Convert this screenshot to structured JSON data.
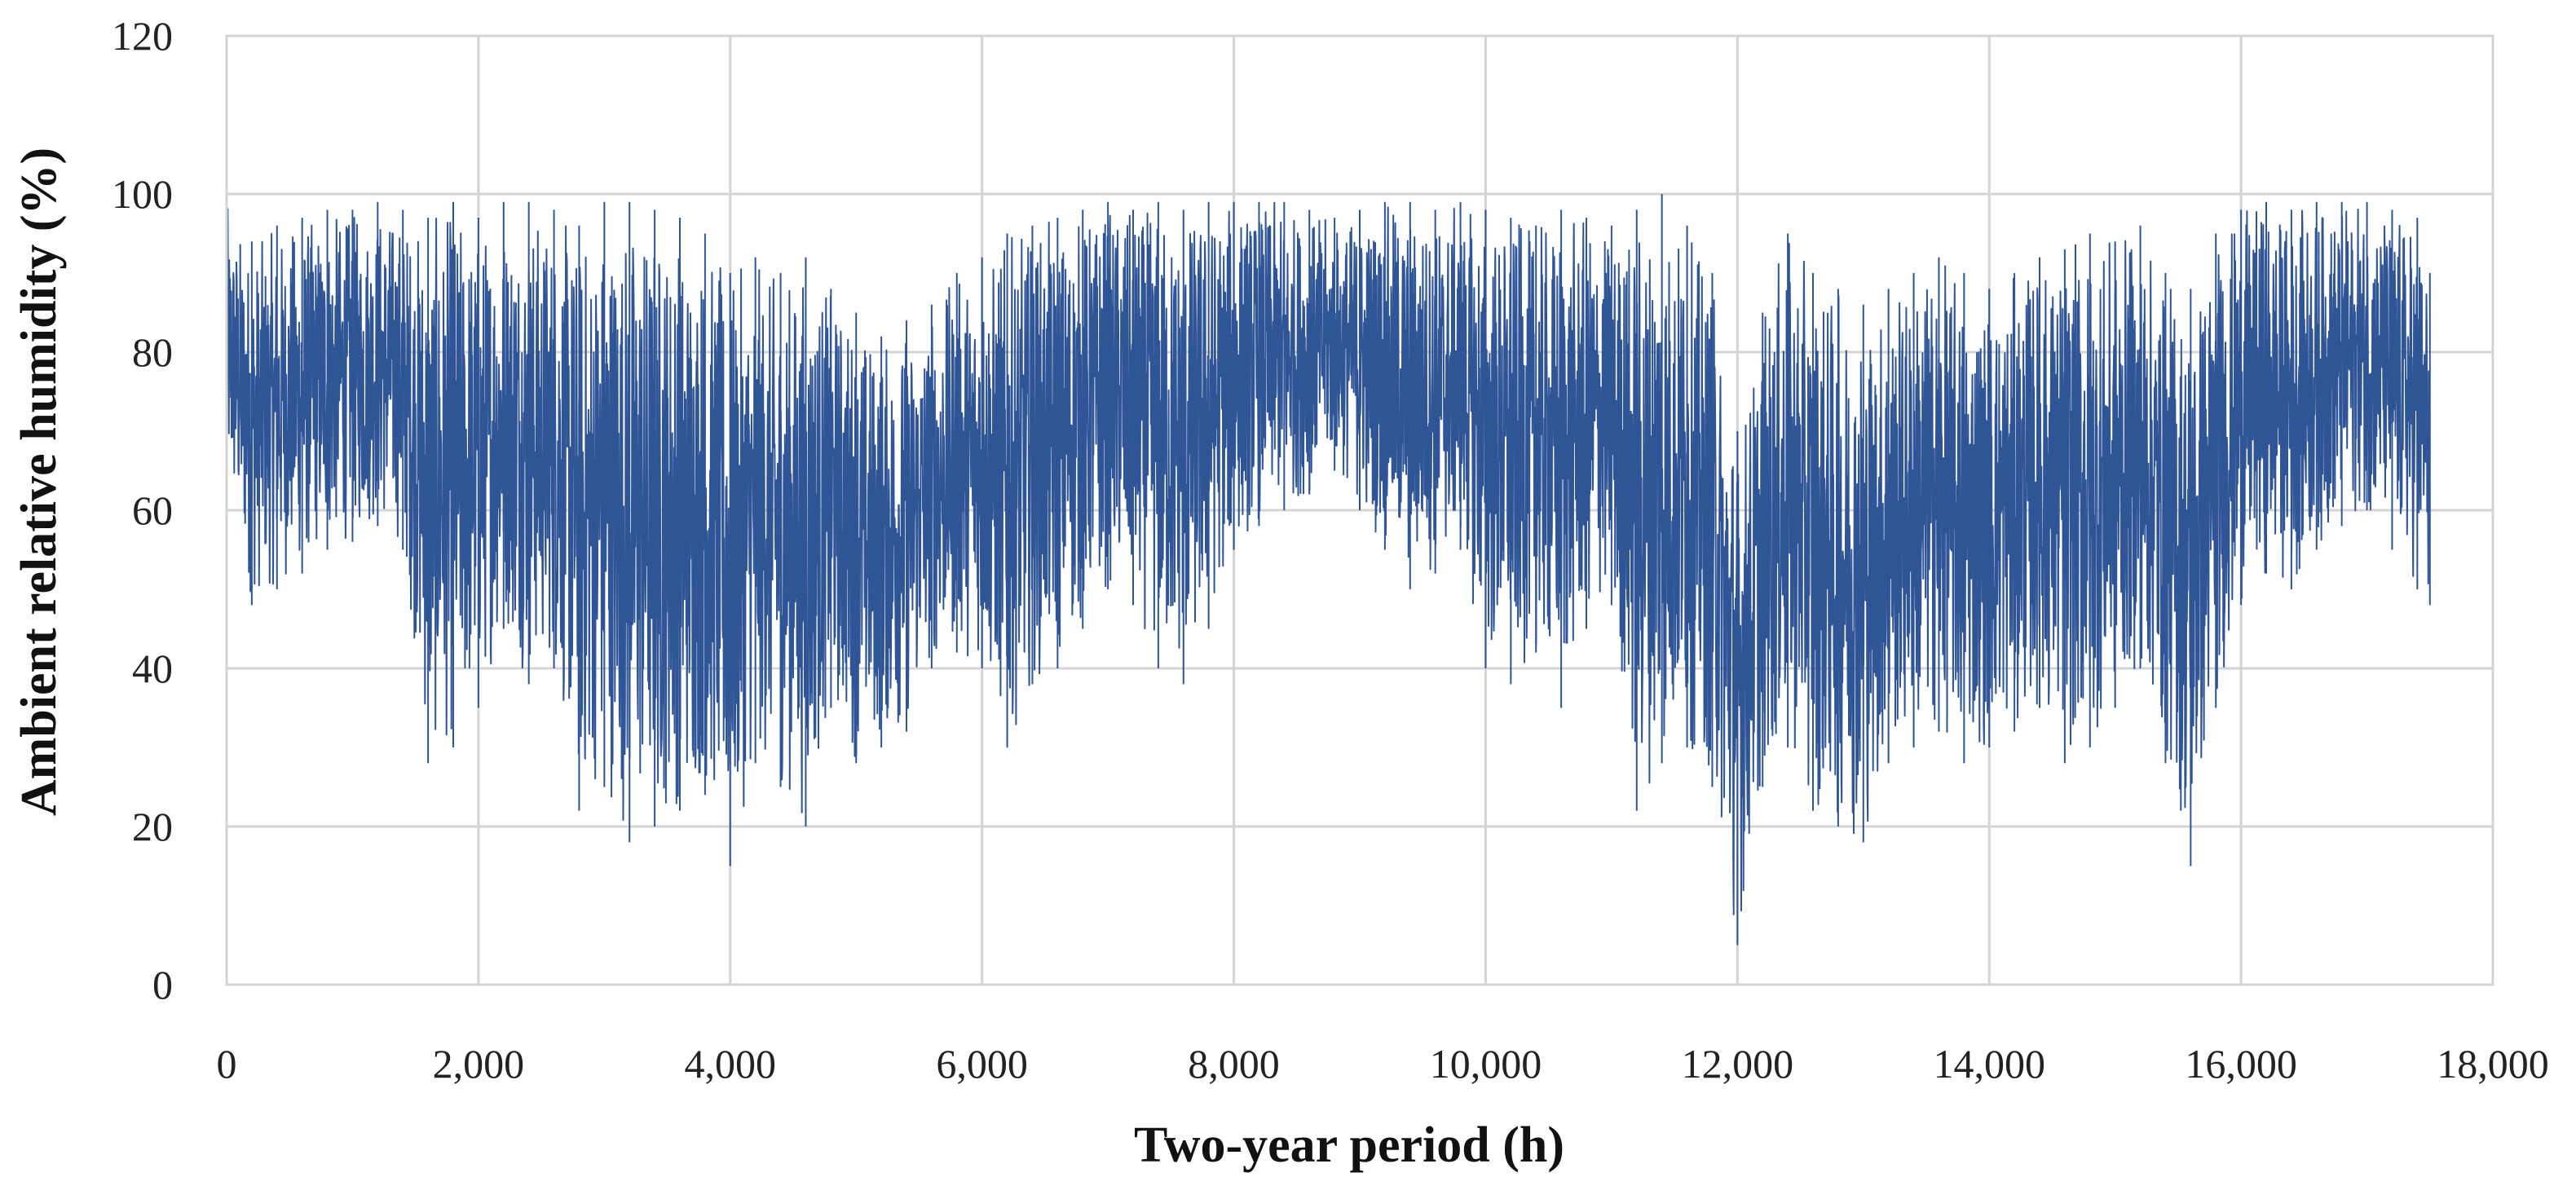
{
  "chart_data": {
    "type": "line",
    "title": "",
    "xlabel": "Two-year period (h)",
    "ylabel": "Ambient relative humidity (%)",
    "xlim": [
      0,
      18000
    ],
    "ylim": [
      0,
      120
    ],
    "x_ticks": [
      0,
      2000,
      4000,
      6000,
      8000,
      10000,
      12000,
      14000,
      16000,
      18000
    ],
    "x_tick_labels": [
      "0",
      "2,000",
      "4,000",
      "6,000",
      "8,000",
      "10,000",
      "12,000",
      "14,000",
      "16,000",
      "18,000"
    ],
    "y_ticks": [
      0,
      20,
      40,
      60,
      80,
      100,
      120
    ],
    "y_tick_labels": [
      "0",
      "20",
      "40",
      "60",
      "80",
      "100",
      "120"
    ],
    "grid": true,
    "legend": "none",
    "series_color": "#2f5597",
    "series": [
      {
        "name": "Ambient relative humidity",
        "sampling": "hourly values summarized as min/max envelope every 200 h",
        "x": [
          0,
          200,
          400,
          600,
          800,
          1000,
          1200,
          1400,
          1600,
          1800,
          2000,
          2200,
          2400,
          2600,
          2800,
          3000,
          3200,
          3400,
          3600,
          3800,
          4000,
          4200,
          4400,
          4600,
          4800,
          5000,
          5200,
          5400,
          5600,
          5800,
          6000,
          6200,
          6400,
          6600,
          6800,
          7000,
          7200,
          7400,
          7600,
          7800,
          8000,
          8200,
          8400,
          8600,
          8800,
          9000,
          9200,
          9400,
          9600,
          9800,
          10000,
          10200,
          10400,
          10600,
          10800,
          11000,
          11200,
          11400,
          11600,
          11800,
          12000,
          12200,
          12400,
          12600,
          12800,
          13000,
          13200,
          13400,
          13600,
          13800,
          14000,
          14200,
          14400,
          14600,
          14800,
          15000,
          15200,
          15400,
          15600,
          15800,
          16000,
          16200,
          16400,
          16600,
          16800,
          17000,
          17200,
          17400,
          17500
        ],
        "low": [
          62,
          48,
          50,
          52,
          55,
          56,
          58,
          55,
          28,
          30,
          35,
          45,
          38,
          40,
          22,
          25,
          18,
          20,
          22,
          24,
          15,
          28,
          25,
          20,
          35,
          28,
          30,
          32,
          40,
          42,
          40,
          30,
          38,
          40,
          45,
          50,
          48,
          40,
          38,
          45,
          55,
          58,
          60,
          62,
          65,
          60,
          55,
          50,
          52,
          55,
          40,
          38,
          42,
          35,
          45,
          48,
          22,
          28,
          30,
          25,
          5,
          25,
          30,
          22,
          20,
          18,
          28,
          30,
          32,
          28,
          30,
          32,
          35,
          28,
          30,
          35,
          40,
          28,
          15,
          35,
          48,
          52,
          50,
          55,
          58,
          60,
          55,
          50,
          48
        ],
        "high": [
          99,
          94,
          96,
          97,
          98,
          98,
          99,
          98,
          97,
          99,
          97,
          99,
          99,
          98,
          96,
          99,
          99,
          98,
          97,
          95,
          90,
          92,
          90,
          92,
          88,
          85,
          82,
          84,
          86,
          90,
          92,
          95,
          96,
          97,
          98,
          99,
          98,
          99,
          98,
          99,
          99,
          99,
          99,
          98,
          97,
          98,
          99,
          99,
          98,
          99,
          98,
          97,
          96,
          98,
          97,
          96,
          98,
          100,
          96,
          90,
          70,
          85,
          95,
          90,
          88,
          86,
          88,
          90,
          92,
          90,
          88,
          90,
          92,
          93,
          95,
          94,
          96,
          90,
          88,
          95,
          98,
          99,
          98,
          99,
          99,
          99,
          98,
          97,
          90
        ]
      }
    ]
  }
}
